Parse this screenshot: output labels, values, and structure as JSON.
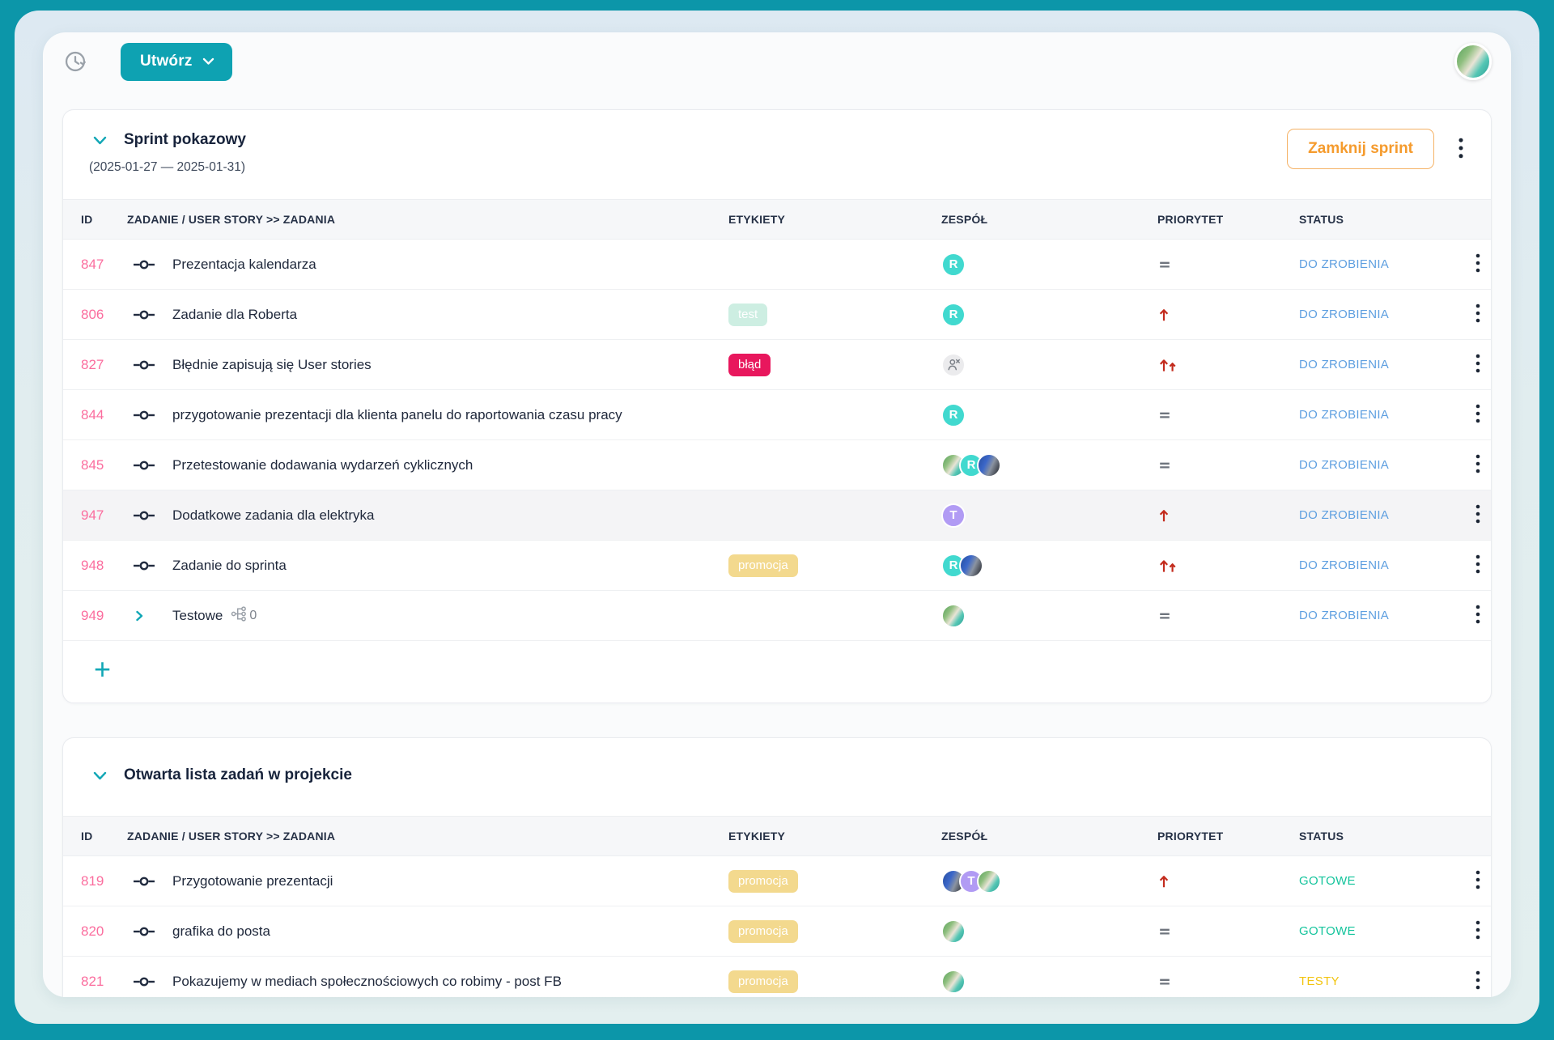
{
  "topbar": {
    "create_label": "Utwórz",
    "icons": {
      "left": "clock-history-icon",
      "create_chevron": "chevron-down-icon",
      "right": "user-avatar"
    }
  },
  "columns": [
    "ID",
    "ZADANIE / USER STORY >> ZADANIA",
    "ETYKIETY",
    "ZESPÓŁ",
    "PRIORYTET",
    "STATUS"
  ],
  "sprint": {
    "title": "Sprint pokazowy",
    "dates": "(2025-01-27 — 2025-01-31)",
    "close_button": "Zamknij sprint",
    "add_button": "+",
    "rows": [
      {
        "id": "847",
        "title": "Prezentacja kalendarza",
        "icon": "task-commit",
        "labels": [],
        "team": [
          "r"
        ],
        "priority": "medium",
        "status": {
          "label": "DO ZROBIENIA",
          "type": "todo"
        }
      },
      {
        "id": "806",
        "title": "Zadanie dla Roberta",
        "icon": "task-commit",
        "labels": [
          {
            "text": "test",
            "type": "test"
          }
        ],
        "team": [
          "r"
        ],
        "priority": "high",
        "status": {
          "label": "DO ZROBIENIA",
          "type": "todo"
        }
      },
      {
        "id": "827",
        "title": "Błędnie zapisują się User stories",
        "icon": "task-commit",
        "labels": [
          {
            "text": "błąd",
            "type": "blad"
          }
        ],
        "team": [
          "unassigned"
        ],
        "priority": "highest",
        "status": {
          "label": "DO ZROBIENIA",
          "type": "todo"
        }
      },
      {
        "id": "844",
        "title": "przygotowanie prezentacji dla klienta panelu do raportowania czasu pracy",
        "icon": "task-commit",
        "labels": [],
        "team": [
          "r"
        ],
        "priority": "medium",
        "status": {
          "label": "DO ZROBIENIA",
          "type": "todo"
        }
      },
      {
        "id": "845",
        "title": "Przetestowanie dodawania wydarzeń cyklicznych",
        "icon": "task-commit",
        "labels": [],
        "team": [
          "photo-green",
          "r",
          "photo-car"
        ],
        "priority": "medium",
        "status": {
          "label": "DO ZROBIENIA",
          "type": "todo"
        }
      },
      {
        "id": "947",
        "title": "Dodatkowe zadania dla elektryka",
        "icon": "task-commit",
        "highlighted": true,
        "labels": [],
        "team": [
          "t"
        ],
        "priority": "high",
        "status": {
          "label": "DO ZROBIENIA",
          "type": "todo"
        }
      },
      {
        "id": "948",
        "title": "Zadanie do sprinta",
        "icon": "task-commit",
        "labels": [
          {
            "text": "promocja",
            "type": "promocja"
          }
        ],
        "team": [
          "r",
          "photo-car"
        ],
        "priority": "highest",
        "status": {
          "label": "DO ZROBIENIA",
          "type": "todo"
        }
      },
      {
        "id": "949",
        "title": "Testowe",
        "icon": "expand-chevron",
        "subtask_count": "0",
        "labels": [],
        "team": [
          "photo-green"
        ],
        "priority": "medium",
        "status": {
          "label": "DO ZROBIENIA",
          "type": "todo"
        }
      }
    ]
  },
  "backlog": {
    "title": "Otwarta lista zadań w projekcie",
    "rows": [
      {
        "id": "819",
        "title": "Przygotowanie prezentacji",
        "icon": "task-commit",
        "labels": [
          {
            "text": "promocja",
            "type": "promocja"
          }
        ],
        "team": [
          "photo-car",
          "t",
          "photo-green"
        ],
        "priority": "high",
        "status": {
          "label": "GOTOWE",
          "type": "done"
        }
      },
      {
        "id": "820",
        "title": "grafika do posta",
        "icon": "task-commit",
        "labels": [
          {
            "text": "promocja",
            "type": "promocja"
          }
        ],
        "team": [
          "photo-green"
        ],
        "priority": "medium",
        "status": {
          "label": "GOTOWE",
          "type": "done"
        }
      },
      {
        "id": "821",
        "title": "Pokazujemy w mediach społecznościowych co robimy - post FB",
        "icon": "task-commit",
        "labels": [
          {
            "text": "promocja",
            "type": "promocja"
          }
        ],
        "team": [
          "photo-green"
        ],
        "priority": "medium",
        "status": {
          "label": "TESTY",
          "type": "testy"
        }
      }
    ]
  },
  "colors": {
    "accent_teal": "#0ea2b2",
    "frame_teal": "#0c96a9",
    "id_pink": "#fb6d9e",
    "status_todo": "#5e9fe0",
    "status_done": "#14c49c",
    "status_testy": "#f2c40f",
    "priority_red": "#c32b1d",
    "priority_gray": "#6e747d",
    "close_orange": "#f59b2d",
    "chip_test": "#cdeee2",
    "chip_blad": "#e8175d",
    "chip_promocja": "#f3d98e",
    "avatar_r": "#41d9cf",
    "avatar_t": "#b19bf4"
  }
}
